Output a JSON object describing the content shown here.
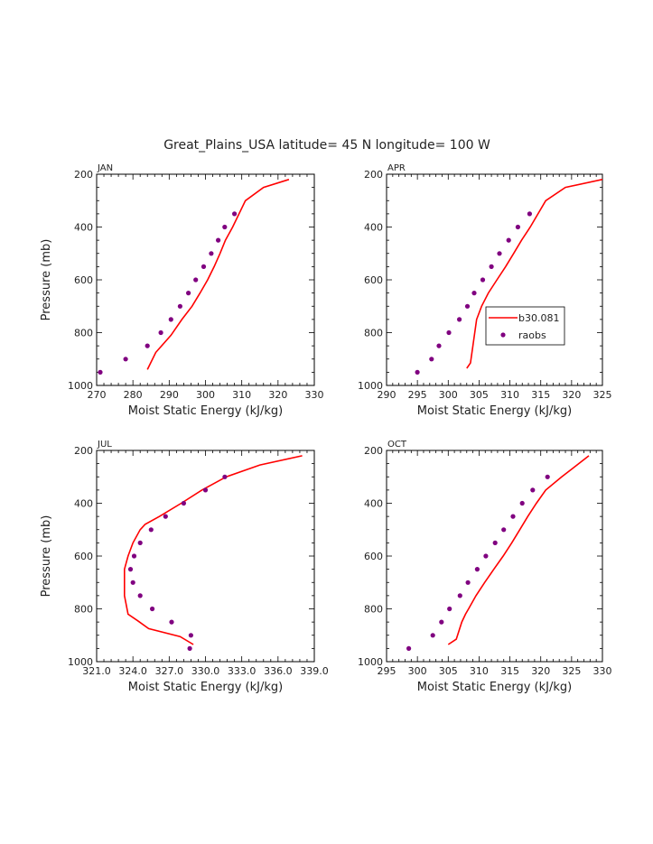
{
  "figure": {
    "title": "Great_Plains_USA  latitude= 45 N longitude= 100 W",
    "model_color": "#ff0000",
    "obs_color": "#800080"
  },
  "chart_data": [
    {
      "type": "line",
      "panel_label": "JAN",
      "xlabel": "Moist Static Energy (kJ/kg)",
      "ylabel": "Pressure (mb)",
      "xlim": [
        270,
        330
      ],
      "ylim": [
        1000,
        200
      ],
      "x_ticks": [
        "270",
        "280",
        "290",
        "300",
        "310",
        "320",
        "330"
      ],
      "y_ticks": [
        "200",
        "400",
        "600",
        "800",
        "1000"
      ],
      "series": [
        {
          "name": "b30.081",
          "kind": "line",
          "x": [
            284.0,
            286.3,
            290.5,
            293.5,
            296.3,
            298.5,
            300.6,
            302.4,
            304.0,
            305.5,
            307.5,
            311.0,
            316.0,
            323.0
          ],
          "y": [
            940,
            875,
            810,
            750,
            700,
            650,
            600,
            550,
            500,
            450,
            400,
            300,
            250,
            220
          ]
        },
        {
          "name": "raobs",
          "kind": "points",
          "x": [
            271.0,
            278.0,
            284.0,
            287.7,
            290.5,
            293.0,
            295.3,
            297.3,
            299.5,
            301.6,
            303.5,
            305.3,
            308.0
          ],
          "y": [
            950,
            900,
            850,
            800,
            750,
            700,
            650,
            600,
            550,
            500,
            450,
            400,
            350
          ]
        }
      ]
    },
    {
      "type": "line",
      "panel_label": "APR",
      "xlabel": "Moist Static Energy (kJ/kg)",
      "ylabel": "",
      "xlim": [
        290,
        325
      ],
      "ylim": [
        1000,
        200
      ],
      "x_ticks": [
        "290",
        "295",
        "300",
        "305",
        "310",
        "315",
        "320",
        "325"
      ],
      "y_ticks": [
        "200",
        "400",
        "600",
        "800",
        "1000"
      ],
      "legend": {
        "position": "middle-right",
        "entries": [
          "b30.081",
          "raobs"
        ]
      },
      "series": [
        {
          "name": "b30.081",
          "kind": "line",
          "x": [
            303.0,
            303.6,
            304.0,
            304.6,
            305.4,
            306.5,
            307.9,
            309.3,
            310.6,
            311.9,
            313.3,
            315.8,
            319.0,
            325.0
          ],
          "y": [
            935,
            915,
            850,
            750,
            700,
            650,
            600,
            550,
            500,
            450,
            400,
            300,
            250,
            220
          ]
        },
        {
          "name": "raobs",
          "kind": "points",
          "x": [
            295.0,
            297.3,
            298.5,
            300.1,
            301.8,
            303.1,
            304.2,
            305.6,
            307.0,
            308.3,
            309.8,
            311.3,
            313.2
          ],
          "y": [
            950,
            900,
            850,
            800,
            750,
            700,
            650,
            600,
            550,
            500,
            450,
            400,
            350
          ]
        }
      ]
    },
    {
      "type": "line",
      "panel_label": "JUL",
      "xlabel": "Moist Static Energy (kJ/kg)",
      "ylabel": "Pressure (mb)",
      "xlim": [
        321.0,
        339.0
      ],
      "ylim": [
        1000,
        200
      ],
      "x_ticks": [
        "321.0",
        "324.0",
        "327.0",
        "330.0",
        "333.0",
        "336.0",
        "339.0"
      ],
      "y_ticks": [
        "200",
        "400",
        "600",
        "800",
        "1000"
      ],
      "series": [
        {
          "name": "b30.081",
          "kind": "line",
          "x": [
            329.0,
            327.9,
            325.3,
            324.4,
            323.6,
            323.3,
            323.3,
            323.6,
            324.0,
            324.6,
            325.0,
            326.2,
            328.0,
            329.7,
            331.7,
            334.5,
            338.0
          ],
          "y": [
            935,
            905,
            875,
            845,
            820,
            750,
            650,
            600,
            550,
            500,
            480,
            450,
            400,
            350,
            300,
            255,
            220
          ]
        },
        {
          "name": "raobs",
          "kind": "points",
          "x": [
            328.7,
            328.8,
            327.2,
            325.6,
            324.6,
            324.0,
            323.8,
            324.1,
            324.6,
            325.5,
            326.7,
            328.2,
            330.0,
            331.6
          ],
          "y": [
            950,
            900,
            850,
            800,
            750,
            700,
            650,
            600,
            550,
            500,
            450,
            400,
            350,
            300
          ]
        }
      ]
    },
    {
      "type": "line",
      "panel_label": "OCT",
      "xlabel": "Moist Static Energy (kJ/kg)",
      "ylabel": "",
      "xlim": [
        295,
        330
      ],
      "ylim": [
        1000,
        200
      ],
      "x_ticks": [
        "295",
        "300",
        "305",
        "310",
        "315",
        "320",
        "325",
        "330"
      ],
      "y_ticks": [
        "200",
        "400",
        "600",
        "800",
        "1000"
      ],
      "series": [
        {
          "name": "b30.081",
          "kind": "line",
          "x": [
            305.0,
            306.3,
            307.2,
            307.8,
            308.3,
            309.5,
            310.9,
            312.4,
            313.9,
            315.3,
            316.6,
            317.9,
            319.3,
            320.8,
            323.4,
            327.8
          ],
          "y": [
            935,
            915,
            850,
            820,
            800,
            750,
            700,
            650,
            600,
            550,
            500,
            450,
            400,
            350,
            300,
            220
          ]
        },
        {
          "name": "raobs",
          "kind": "points",
          "x": [
            298.6,
            302.5,
            303.9,
            305.2,
            306.9,
            308.2,
            309.7,
            311.1,
            312.6,
            314.0,
            315.5,
            317.0,
            318.7,
            321.1
          ],
          "y": [
            950,
            900,
            850,
            800,
            750,
            700,
            650,
            600,
            550,
            500,
            450,
            400,
            350,
            300
          ]
        }
      ]
    }
  ]
}
